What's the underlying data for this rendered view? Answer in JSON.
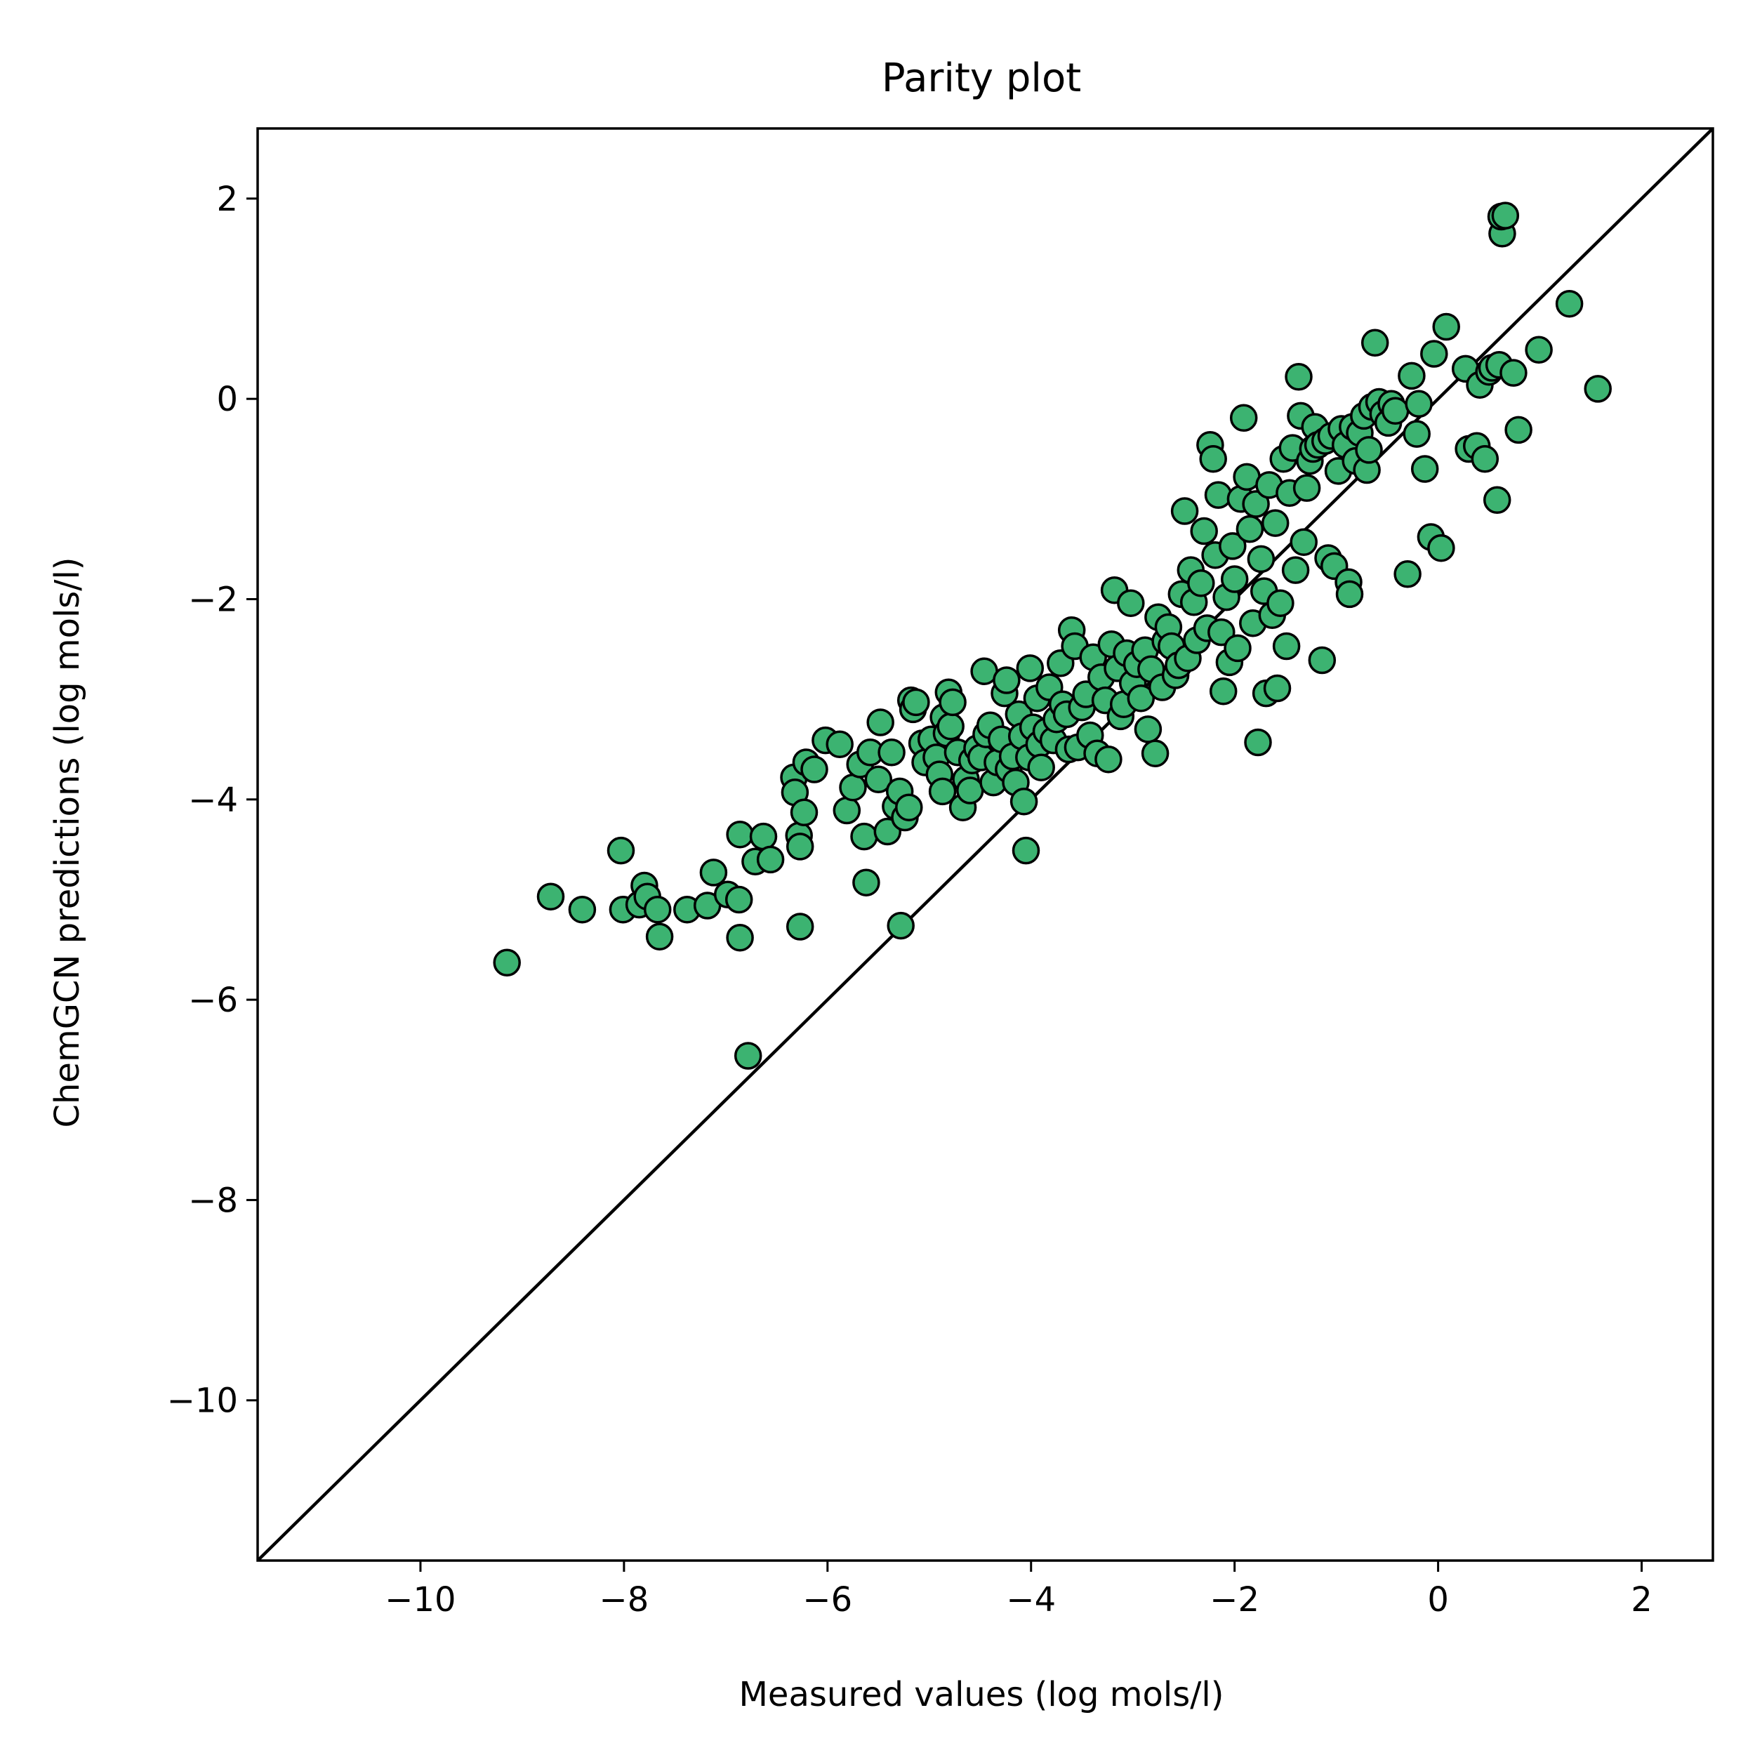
{
  "chart_data": {
    "type": "scatter",
    "title": "Parity plot",
    "xlabel": "Measured values (log mols/l)",
    "ylabel": "ChemGCN predictions (log mols/l)",
    "xlim": [
      -11.6,
      2.7
    ],
    "ylim": [
      -11.6,
      2.7
    ],
    "xticks": [
      -10,
      -8,
      -6,
      -4,
      -2,
      0,
      2
    ],
    "yticks": [
      -10,
      -8,
      -6,
      -4,
      -2,
      0,
      2
    ],
    "xtick_labels": [
      "−10",
      "−8",
      "−6",
      "−4",
      "−2",
      "0",
      "2"
    ],
    "ytick_labels": [
      "−10",
      "−8",
      "−6",
      "−4",
      "−2",
      "0",
      "2"
    ],
    "grid": false,
    "reference_line": "y = x",
    "marker_color": "#3cb371",
    "marker_edge_color": "#000000",
    "line_color": "#000000",
    "points": [
      [
        -9.15,
        -5.63
      ],
      [
        -8.72,
        -4.97
      ],
      [
        -8.41,
        -5.1
      ],
      [
        -8.03,
        -4.51
      ],
      [
        -8.01,
        -5.1
      ],
      [
        -7.85,
        -5.05
      ],
      [
        -7.8,
        -4.86
      ],
      [
        -7.77,
        -4.97
      ],
      [
        -7.67,
        -5.1
      ],
      [
        -7.65,
        -5.37
      ],
      [
        -7.38,
        -5.1
      ],
      [
        -7.18,
        -5.06
      ],
      [
        -7.12,
        -4.73
      ],
      [
        -6.98,
        -4.95
      ],
      [
        -6.87,
        -5.0
      ],
      [
        -6.86,
        -4.35
      ],
      [
        -6.86,
        -5.38
      ],
      [
        -6.78,
        -6.56
      ],
      [
        -6.71,
        -4.62
      ],
      [
        -6.63,
        -4.37
      ],
      [
        -6.56,
        -4.6
      ],
      [
        -6.33,
        -3.78
      ],
      [
        -6.32,
        -3.93
      ],
      [
        -6.28,
        -4.36
      ],
      [
        -6.27,
        -4.47
      ],
      [
        -6.27,
        -5.27
      ],
      [
        -6.23,
        -4.13
      ],
      [
        -6.21,
        -3.63
      ],
      [
        -6.13,
        -3.7
      ],
      [
        -6.02,
        -3.41
      ],
      [
        -5.88,
        -3.45
      ],
      [
        -5.81,
        -4.11
      ],
      [
        -5.75,
        -3.88
      ],
      [
        -5.68,
        -3.65
      ],
      [
        -5.64,
        -4.37
      ],
      [
        -5.62,
        -4.83
      ],
      [
        -5.58,
        -3.53
      ],
      [
        -5.5,
        -3.8
      ],
      [
        -5.48,
        -3.23
      ],
      [
        -5.41,
        -4.32
      ],
      [
        -5.37,
        -3.53
      ],
      [
        -5.33,
        -4.07
      ],
      [
        -5.29,
        -3.92
      ],
      [
        -5.28,
        -5.26
      ],
      [
        -5.24,
        -4.18
      ],
      [
        -5.2,
        -4.08
      ],
      [
        -5.18,
        -3.01
      ],
      [
        -5.16,
        -3.1
      ],
      [
        -5.13,
        -3.03
      ],
      [
        -5.07,
        -3.44
      ],
      [
        -5.04,
        -3.63
      ],
      [
        -4.98,
        -3.4
      ],
      [
        -4.93,
        -3.58
      ],
      [
        -4.9,
        -3.75
      ],
      [
        -4.87,
        -3.92
      ],
      [
        -4.86,
        -3.18
      ],
      [
        -4.83,
        -3.34
      ],
      [
        -4.81,
        -2.93
      ],
      [
        -4.79,
        -3.27
      ],
      [
        -4.77,
        -3.03
      ],
      [
        -4.72,
        -3.53
      ],
      [
        -4.67,
        -4.08
      ],
      [
        -4.64,
        -3.8
      ],
      [
        -4.6,
        -3.91
      ],
      [
        -4.58,
        -3.61
      ],
      [
        -4.53,
        -3.49
      ],
      [
        -4.49,
        -3.58
      ],
      [
        -4.46,
        -2.72
      ],
      [
        -4.44,
        -3.35
      ],
      [
        -4.4,
        -3.26
      ],
      [
        -4.37,
        -3.83
      ],
      [
        -4.33,
        -3.63
      ],
      [
        -4.29,
        -3.4
      ],
      [
        -4.26,
        -2.94
      ],
      [
        -4.24,
        -2.81
      ],
      [
        -4.22,
        -3.7
      ],
      [
        -4.18,
        -3.57
      ],
      [
        -4.15,
        -3.83
      ],
      [
        -4.12,
        -3.15
      ],
      [
        -4.09,
        -3.37
      ],
      [
        -4.07,
        -4.02
      ],
      [
        -4.05,
        -4.51
      ],
      [
        -4.02,
        -3.58
      ],
      [
        -4.01,
        -2.69
      ],
      [
        -3.98,
        -3.28
      ],
      [
        -3.94,
        -2.99
      ],
      [
        -3.92,
        -3.45
      ],
      [
        -3.9,
        -3.68
      ],
      [
        -3.85,
        -3.32
      ],
      [
        -3.82,
        -2.88
      ],
      [
        -3.78,
        -3.41
      ],
      [
        -3.75,
        -3.2
      ],
      [
        -3.71,
        -2.64
      ],
      [
        -3.69,
        -3.05
      ],
      [
        -3.65,
        -3.15
      ],
      [
        -3.63,
        -3.5
      ],
      [
        -3.6,
        -2.31
      ],
      [
        -3.57,
        -2.47
      ],
      [
        -3.54,
        -3.48
      ],
      [
        -3.5,
        -3.08
      ],
      [
        -3.46,
        -2.95
      ],
      [
        -3.42,
        -3.36
      ],
      [
        -3.39,
        -2.58
      ],
      [
        -3.35,
        -3.54
      ],
      [
        -3.31,
        -2.78
      ],
      [
        -3.27,
        -3.01
      ],
      [
        -3.24,
        -3.6
      ],
      [
        -3.21,
        -2.45
      ],
      [
        -3.18,
        -1.91
      ],
      [
        -3.15,
        -2.69
      ],
      [
        -3.12,
        -3.17
      ],
      [
        -3.09,
        -3.05
      ],
      [
        -3.06,
        -2.54
      ],
      [
        -3.02,
        -2.04
      ],
      [
        -3.0,
        -2.84
      ],
      [
        -2.96,
        -2.65
      ],
      [
        -2.92,
        -2.99
      ],
      [
        -2.88,
        -2.51
      ],
      [
        -2.85,
        -3.3
      ],
      [
        -2.82,
        -2.7
      ],
      [
        -2.78,
        -3.54
      ],
      [
        -2.75,
        -2.18
      ],
      [
        -2.71,
        -2.88
      ],
      [
        -2.68,
        -2.42
      ],
      [
        -2.65,
        -2.28
      ],
      [
        -2.62,
        -2.47
      ],
      [
        -2.58,
        -2.76
      ],
      [
        -2.55,
        -2.66
      ],
      [
        -2.52,
        -1.95
      ],
      [
        -2.49,
        -1.12
      ],
      [
        -2.46,
        -2.59
      ],
      [
        -2.43,
        -1.71
      ],
      [
        -2.4,
        -2.03
      ],
      [
        -2.37,
        -2.41
      ],
      [
        -2.33,
        -1.84
      ],
      [
        -2.3,
        -1.32
      ],
      [
        -2.27,
        -2.29
      ],
      [
        -2.24,
        -0.46
      ],
      [
        -2.21,
        -0.6
      ],
      [
        -2.19,
        -1.56
      ],
      [
        -2.16,
        -0.96
      ],
      [
        -2.13,
        -2.33
      ],
      [
        -2.11,
        -2.92
      ],
      [
        -2.08,
        -1.98
      ],
      [
        -2.05,
        -2.63
      ],
      [
        -2.02,
        -1.47
      ],
      [
        -2.0,
        -1.8
      ],
      [
        -1.97,
        -2.49
      ],
      [
        -1.94,
        -1.0
      ],
      [
        -1.91,
        -0.19
      ],
      [
        -1.88,
        -0.78
      ],
      [
        -1.85,
        -1.3
      ],
      [
        -1.82,
        -2.24
      ],
      [
        -1.79,
        -1.05
      ],
      [
        -1.77,
        -3.43
      ],
      [
        -1.74,
        -1.6
      ],
      [
        -1.71,
        -1.92
      ],
      [
        -1.69,
        -2.94
      ],
      [
        -1.66,
        -0.86
      ],
      [
        -1.63,
        -2.16
      ],
      [
        -1.6,
        -1.24
      ],
      [
        -1.58,
        -2.89
      ],
      [
        -1.55,
        -2.04
      ],
      [
        -1.52,
        -0.6
      ],
      [
        -1.49,
        -2.47
      ],
      [
        -1.46,
        -0.94
      ],
      [
        -1.43,
        -0.49
      ],
      [
        -1.4,
        -1.71
      ],
      [
        -1.37,
        0.22
      ],
      [
        -1.35,
        -0.17
      ],
      [
        -1.32,
        -1.43
      ],
      [
        -1.29,
        -0.89
      ],
      [
        -1.26,
        -0.62
      ],
      [
        -1.23,
        -0.5
      ],
      [
        -1.21,
        -0.28
      ],
      [
        -1.18,
        -0.46
      ],
      [
        -1.14,
        -2.61
      ],
      [
        -1.11,
        -0.42
      ],
      [
        -1.08,
        -1.59
      ],
      [
        -1.05,
        -0.37
      ],
      [
        -1.02,
        -1.67
      ],
      [
        -0.98,
        -0.72
      ],
      [
        -0.95,
        -0.3
      ],
      [
        -0.91,
        -0.46
      ],
      [
        -0.88,
        -1.83
      ],
      [
        -0.87,
        -1.95
      ],
      [
        -0.84,
        -0.28
      ],
      [
        -0.81,
        -0.62
      ],
      [
        -0.77,
        -0.34
      ],
      [
        -0.73,
        -0.17
      ],
      [
        -0.7,
        -0.71
      ],
      [
        -0.68,
        -0.51
      ],
      [
        -0.65,
        -0.08
      ],
      [
        -0.62,
        0.56
      ],
      [
        -0.58,
        -0.03
      ],
      [
        -0.54,
        -0.15
      ],
      [
        -0.49,
        -0.24
      ],
      [
        -0.46,
        -0.05
      ],
      [
        -0.42,
        -0.12
      ],
      [
        -0.3,
        -1.75
      ],
      [
        -0.26,
        0.23
      ],
      [
        -0.21,
        -0.35
      ],
      [
        -0.19,
        -0.05
      ],
      [
        -0.13,
        -0.7
      ],
      [
        -0.07,
        -1.38
      ],
      [
        -0.04,
        0.45
      ],
      [
        0.03,
        -1.49
      ],
      [
        0.08,
        0.72
      ],
      [
        0.27,
        0.3
      ],
      [
        0.3,
        -0.5
      ],
      [
        0.38,
        -0.47
      ],
      [
        0.41,
        0.14
      ],
      [
        0.46,
        -0.6
      ],
      [
        0.5,
        0.27
      ],
      [
        0.53,
        0.31
      ],
      [
        0.58,
        -1.01
      ],
      [
        0.6,
        0.34
      ],
      [
        0.63,
        1.65
      ],
      [
        0.62,
        1.82
      ],
      [
        0.66,
        1.83
      ],
      [
        0.74,
        0.26
      ],
      [
        0.79,
        -0.31
      ],
      [
        0.99,
        0.49
      ],
      [
        1.29,
        0.95
      ],
      [
        1.57,
        0.1
      ]
    ]
  }
}
